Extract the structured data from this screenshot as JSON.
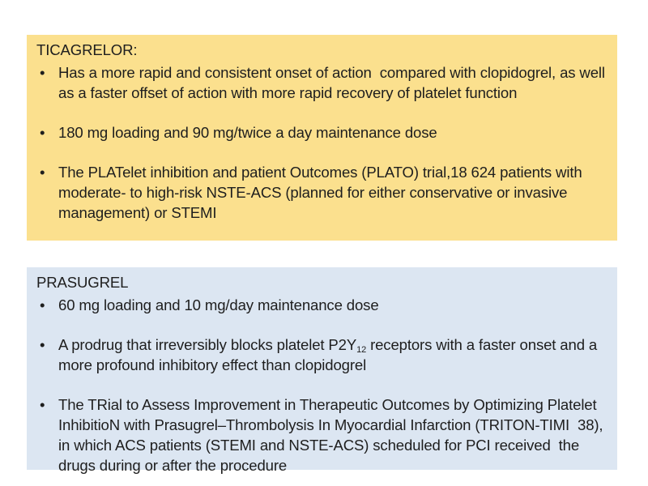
{
  "slide": {
    "bullet_char": "•",
    "text_color": "#1e1e1e",
    "background_color": "#ffffff",
    "ticagrelor": {
      "title": "TICAGRELOR:",
      "bg_color": "#FBE08E",
      "bullets": [
        "Has a more rapid and consistent onset of action  compared with clopidogrel, as well as a faster offset of action with more rapid recovery of platelet function",
        "180 mg loading and 90 mg/twice a day maintenance dose",
        "The PLATelet inhibition and patient Outcomes (PLATO) trial,18 624 patients with moderate- to high-risk NSTE-ACS (planned for either conservative or invasive management) or STEMI"
      ]
    },
    "prasugrel": {
      "title": "PRASUGREL",
      "bg_color": "#DCE6F2",
      "bullets": [
        "60 mg loading and 10 mg/day maintenance dose",
        {
          "pre": "A prodrug that irreversibly blocks platelet P2Y",
          "sub": "12",
          "post": " receptors with a faster onset and a more profound inhibitory effect than clopidogrel"
        },
        "The TRial to Assess Improvement in Therapeutic Outcomes by Optimizing Platelet InhibitioN with Prasugrel–Thrombolysis In Myocardial Infarction (TRITON-TIMI  38), in which ACS patients (STEMI and NSTE-ACS) scheduled for PCI received  the drugs during or after the procedure"
      ]
    }
  }
}
